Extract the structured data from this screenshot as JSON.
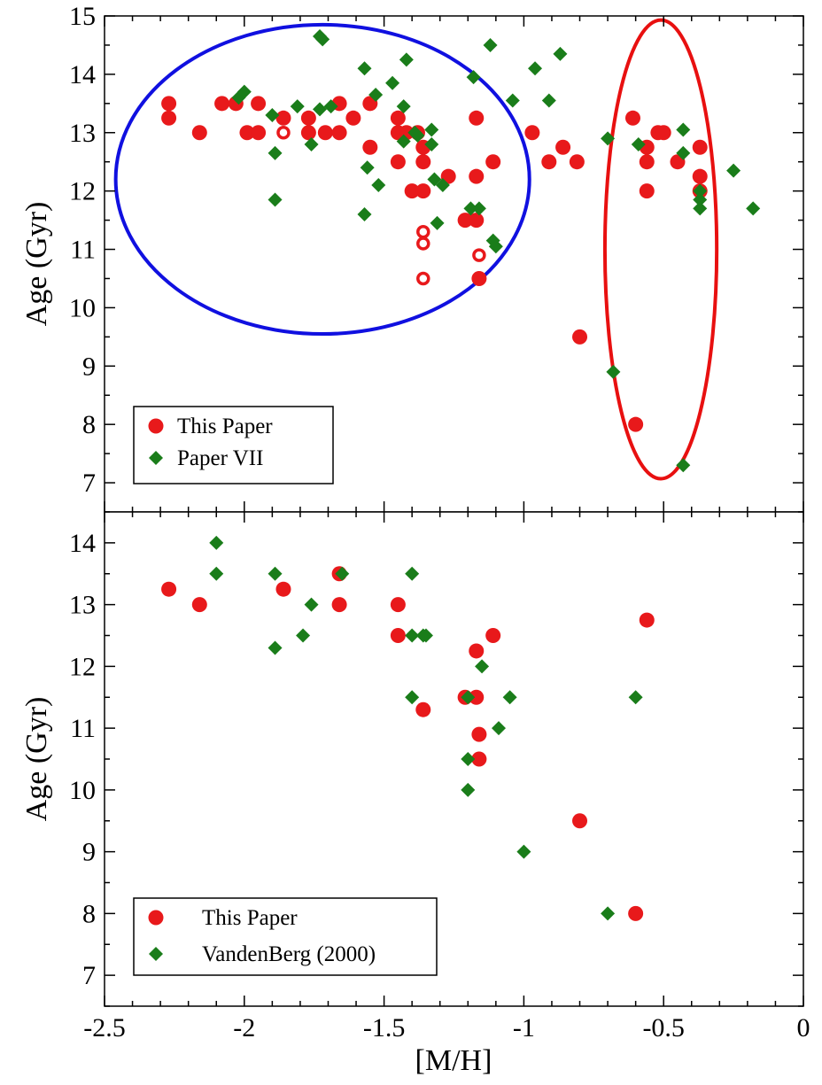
{
  "chart_data": [
    {
      "type": "scatter",
      "panel": "top",
      "xlabel": "",
      "ylabel": "Age (Gyr)",
      "xlim": [
        -2.5,
        0
      ],
      "ylim": [
        6.5,
        15
      ],
      "y_ticks": [
        "7",
        "8",
        "9",
        "10",
        "11",
        "12",
        "13",
        "14",
        "15"
      ],
      "grid": false,
      "legend_position": "bottom-left",
      "series": [
        {
          "name": "This Paper",
          "marker": "circle",
          "color": "#e8191b",
          "points": [
            {
              "x": -2.27,
              "y": 13.5
            },
            {
              "x": -2.27,
              "y": 13.25
            },
            {
              "x": -2.16,
              "y": 13.0
            },
            {
              "x": -2.08,
              "y": 13.5
            },
            {
              "x": -2.03,
              "y": 13.5
            },
            {
              "x": -1.99,
              "y": 13.0
            },
            {
              "x": -1.95,
              "y": 13.0
            },
            {
              "x": -1.95,
              "y": 13.5
            },
            {
              "x": -1.86,
              "y": 13.25
            },
            {
              "x": -1.86,
              "y": 13.0,
              "open": true
            },
            {
              "x": -1.77,
              "y": 13.25
            },
            {
              "x": -1.77,
              "y": 13.0
            },
            {
              "x": -1.71,
              "y": 13.0
            },
            {
              "x": -1.66,
              "y": 13.5
            },
            {
              "x": -1.66,
              "y": 13.0
            },
            {
              "x": -1.61,
              "y": 13.25
            },
            {
              "x": -1.55,
              "y": 13.5
            },
            {
              "x": -1.55,
              "y": 12.75
            },
            {
              "x": -1.45,
              "y": 13.25
            },
            {
              "x": -1.45,
              "y": 13.0
            },
            {
              "x": -1.45,
              "y": 12.5
            },
            {
              "x": -1.42,
              "y": 13.0
            },
            {
              "x": -1.4,
              "y": 12.0
            },
            {
              "x": -1.38,
              "y": 13.0
            },
            {
              "x": -1.36,
              "y": 12.75
            },
            {
              "x": -1.36,
              "y": 12.5
            },
            {
              "x": -1.36,
              "y": 12.0
            },
            {
              "x": -1.36,
              "y": 11.3,
              "open": true
            },
            {
              "x": -1.36,
              "y": 11.1,
              "open": true
            },
            {
              "x": -1.36,
              "y": 10.5,
              "open": true
            },
            {
              "x": -1.27,
              "y": 12.25
            },
            {
              "x": -1.21,
              "y": 11.5
            },
            {
              "x": -1.17,
              "y": 13.25
            },
            {
              "x": -1.17,
              "y": 12.25
            },
            {
              "x": -1.17,
              "y": 11.5
            },
            {
              "x": -1.16,
              "y": 10.9,
              "open": true
            },
            {
              "x": -1.16,
              "y": 10.5
            },
            {
              "x": -1.11,
              "y": 12.5
            },
            {
              "x": -0.97,
              "y": 13.0
            },
            {
              "x": -0.91,
              "y": 12.5
            },
            {
              "x": -0.86,
              "y": 12.75
            },
            {
              "x": -0.81,
              "y": 12.5
            },
            {
              "x": -0.8,
              "y": 9.5
            },
            {
              "x": -0.61,
              "y": 13.25
            },
            {
              "x": -0.6,
              "y": 8.0
            },
            {
              "x": -0.56,
              "y": 12.75
            },
            {
              "x": -0.56,
              "y": 12.5
            },
            {
              "x": -0.56,
              "y": 12.0
            },
            {
              "x": -0.52,
              "y": 13.0
            },
            {
              "x": -0.5,
              "y": 13.0
            },
            {
              "x": -0.45,
              "y": 12.5
            },
            {
              "x": -0.37,
              "y": 12.75
            },
            {
              "x": -0.37,
              "y": 12.25
            },
            {
              "x": -0.37,
              "y": 12.0
            }
          ]
        },
        {
          "name": "Paper VII",
          "marker": "diamond",
          "color": "#1a7d1a",
          "points": [
            {
              "x": -2.02,
              "y": 13.6
            },
            {
              "x": -2.0,
              "y": 13.7
            },
            {
              "x": -1.9,
              "y": 13.3
            },
            {
              "x": -1.89,
              "y": 12.65
            },
            {
              "x": -1.89,
              "y": 11.85
            },
            {
              "x": -1.81,
              "y": 13.45
            },
            {
              "x": -1.76,
              "y": 12.8
            },
            {
              "x": -1.73,
              "y": 14.65
            },
            {
              "x": -1.72,
              "y": 14.6
            },
            {
              "x": -1.73,
              "y": 13.4
            },
            {
              "x": -1.69,
              "y": 13.45
            },
            {
              "x": -1.57,
              "y": 14.1
            },
            {
              "x": -1.56,
              "y": 12.4
            },
            {
              "x": -1.57,
              "y": 11.6
            },
            {
              "x": -1.53,
              "y": 13.65
            },
            {
              "x": -1.52,
              "y": 12.1
            },
            {
              "x": -1.47,
              "y": 13.85
            },
            {
              "x": -1.42,
              "y": 14.25
            },
            {
              "x": -1.43,
              "y": 13.45
            },
            {
              "x": -1.43,
              "y": 12.85
            },
            {
              "x": -1.39,
              "y": 13.0
            },
            {
              "x": -1.38,
              "y": 12.95
            },
            {
              "x": -1.33,
              "y": 13.05
            },
            {
              "x": -1.33,
              "y": 12.8
            },
            {
              "x": -1.32,
              "y": 12.2
            },
            {
              "x": -1.31,
              "y": 11.45
            },
            {
              "x": -1.29,
              "y": 12.1
            },
            {
              "x": -1.19,
              "y": 11.7
            },
            {
              "x": -1.18,
              "y": 13.95
            },
            {
              "x": -1.16,
              "y": 11.7
            },
            {
              "x": -1.12,
              "y": 14.5
            },
            {
              "x": -1.11,
              "y": 11.15
            },
            {
              "x": -1.1,
              "y": 11.05
            },
            {
              "x": -1.04,
              "y": 13.55
            },
            {
              "x": -0.96,
              "y": 14.1
            },
            {
              "x": -0.91,
              "y": 13.55
            },
            {
              "x": -0.87,
              "y": 14.35
            },
            {
              "x": -0.7,
              "y": 12.9
            },
            {
              "x": -0.68,
              "y": 8.9
            },
            {
              "x": -0.59,
              "y": 12.8
            },
            {
              "x": -0.43,
              "y": 13.05
            },
            {
              "x": -0.43,
              "y": 12.65
            },
            {
              "x": -0.43,
              "y": 7.3
            },
            {
              "x": -0.37,
              "y": 12.0
            },
            {
              "x": -0.37,
              "y": 11.85
            },
            {
              "x": -0.37,
              "y": 11.7
            },
            {
              "x": -0.25,
              "y": 12.35
            },
            {
              "x": -0.18,
              "y": 11.7
            }
          ]
        }
      ],
      "annotations": [
        {
          "shape": "ellipse",
          "color": "#1010e0",
          "cx": -1.72,
          "cy": 12.2,
          "rx": 0.74,
          "ry": 2.65
        },
        {
          "shape": "ellipse",
          "color": "#e81010",
          "cx": -0.51,
          "cy": 11.0,
          "rx": 0.2,
          "ry": 3.93
        }
      ]
    },
    {
      "type": "scatter",
      "panel": "bottom",
      "xlabel": "[M/H]",
      "ylabel": "Age (Gyr)",
      "xlim": [
        -2.5,
        0
      ],
      "ylim": [
        6.5,
        14.5
      ],
      "x_ticks": [
        "-2.5",
        "-2",
        "-1.5",
        "-1",
        "-0.5",
        "0"
      ],
      "y_ticks": [
        "7",
        "8",
        "9",
        "10",
        "11",
        "12",
        "13",
        "14"
      ],
      "grid": false,
      "legend_position": "bottom-left",
      "series": [
        {
          "name": "This Paper",
          "marker": "circle",
          "color": "#e8191b",
          "points": [
            {
              "x": -2.27,
              "y": 13.25
            },
            {
              "x": -2.16,
              "y": 13.0
            },
            {
              "x": -1.86,
              "y": 13.25
            },
            {
              "x": -1.66,
              "y": 13.5
            },
            {
              "x": -1.66,
              "y": 13.0
            },
            {
              "x": -1.45,
              "y": 13.0
            },
            {
              "x": -1.45,
              "y": 12.5
            },
            {
              "x": -1.36,
              "y": 11.3
            },
            {
              "x": -1.21,
              "y": 11.5
            },
            {
              "x": -1.17,
              "y": 12.25
            },
            {
              "x": -1.17,
              "y": 11.5
            },
            {
              "x": -1.16,
              "y": 10.9
            },
            {
              "x": -1.16,
              "y": 10.5
            },
            {
              "x": -1.11,
              "y": 12.5
            },
            {
              "x": -0.8,
              "y": 9.5
            },
            {
              "x": -0.6,
              "y": 8.0
            },
            {
              "x": -0.56,
              "y": 12.75
            }
          ]
        },
        {
          "name": "VandenBerg (2000)",
          "marker": "diamond",
          "color": "#1a7d1a",
          "points": [
            {
              "x": -2.1,
              "y": 14.0
            },
            {
              "x": -2.1,
              "y": 13.5
            },
            {
              "x": -1.89,
              "y": 13.5
            },
            {
              "x": -1.89,
              "y": 12.3
            },
            {
              "x": -1.79,
              "y": 12.5
            },
            {
              "x": -1.76,
              "y": 13.0
            },
            {
              "x": -1.65,
              "y": 13.5
            },
            {
              "x": -1.4,
              "y": 13.5
            },
            {
              "x": -1.4,
              "y": 12.5
            },
            {
              "x": -1.4,
              "y": 11.5
            },
            {
              "x": -1.36,
              "y": 12.5
            },
            {
              "x": -1.35,
              "y": 12.5
            },
            {
              "x": -1.2,
              "y": 11.5
            },
            {
              "x": -1.2,
              "y": 10.5
            },
            {
              "x": -1.2,
              "y": 10.0
            },
            {
              "x": -1.15,
              "y": 12.0
            },
            {
              "x": -1.09,
              "y": 11.0
            },
            {
              "x": -1.05,
              "y": 11.5
            },
            {
              "x": -1.0,
              "y": 9.0
            },
            {
              "x": -0.7,
              "y": 8.0
            },
            {
              "x": -0.6,
              "y": 11.5
            }
          ]
        }
      ]
    }
  ]
}
